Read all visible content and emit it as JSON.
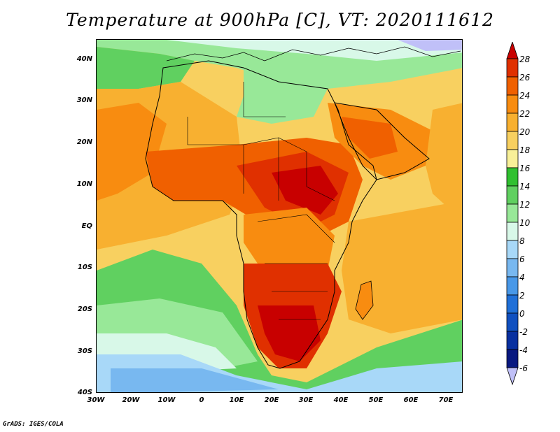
{
  "title": "Temperature at 900hPa [C], VT: 2020111612",
  "footer": "GrADS: IGES/COLA",
  "lat_labels": [
    "40N",
    "30N",
    "20N",
    "10N",
    "EQ",
    "10S",
    "20S",
    "30S",
    "40S"
  ],
  "lon_labels": [
    "30W",
    "20W",
    "10W",
    "0",
    "10E",
    "20E",
    "30E",
    "40E",
    "50E",
    "60E",
    "70E"
  ],
  "colorbar": {
    "labels": [
      "28",
      "26",
      "24",
      "22",
      "20",
      "18",
      "16",
      "14",
      "12",
      "10",
      "8",
      "6",
      "4",
      "2",
      "0",
      "-2",
      "-4",
      "-6"
    ],
    "colors": [
      "#c80000",
      "#e03000",
      "#f06000",
      "#f88c10",
      "#f8b030",
      "#f8d060",
      "#f8f098",
      "#30c030",
      "#60d060",
      "#98e898",
      "#d8f8e8",
      "#a8d8f8",
      "#78b8f0",
      "#4898e8",
      "#2070d8",
      "#1050c0",
      "#0830a0",
      "#081880",
      "#c0c0f8"
    ]
  }
}
